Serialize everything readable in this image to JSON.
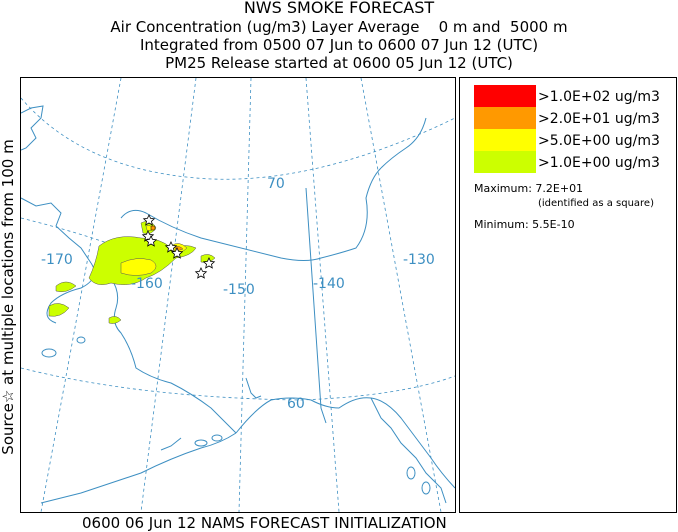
{
  "header": {
    "title": "NWS SMOKE FORECAST",
    "line2": "Air Concentration (ug/m3) Layer Average    0 m and  5000 m",
    "line3": "Integrated from 0500 07 Jun to 0600 07 Jun 12 (UTC)",
    "line4": "PM25 Release started at 0600 05 Jun 12 (UTC)"
  },
  "side_label": "Source☆ at multiple locations from 100 m",
  "map": {
    "grid_labels": {
      "lon_170": "-170",
      "lon_160": "-160",
      "lon_150": "-150",
      "lon_140": "-140",
      "lon_130": "-130",
      "lat_70": "70",
      "lat_60": "60"
    },
    "colors": {
      "coast": "#3d8fc2",
      "grid": "#3d8fc2",
      "level_1": "#ff0000",
      "level_2": "#ff9900",
      "level_3": "#ffff00",
      "level_4": "#ccff00"
    }
  },
  "legend": {
    "items": [
      {
        "label": ">1.0E+02 ug/m3",
        "color": "#ff0000"
      },
      {
        "label": ">2.0E+01 ug/m3",
        "color": "#ff9900"
      },
      {
        "label": ">5.0E+00 ug/m3",
        "color": "#ffff00"
      },
      {
        "label": ">1.0E+00 ug/m3",
        "color": "#ccff00"
      }
    ],
    "maximum": "Maximum: 7.2E+01",
    "maximum_note": "(identified as a square)",
    "minimum": "Minimum: 5.5E-10"
  },
  "footer": "0600 06 Jun 12 NAMS FORECAST INITIALIZATION"
}
